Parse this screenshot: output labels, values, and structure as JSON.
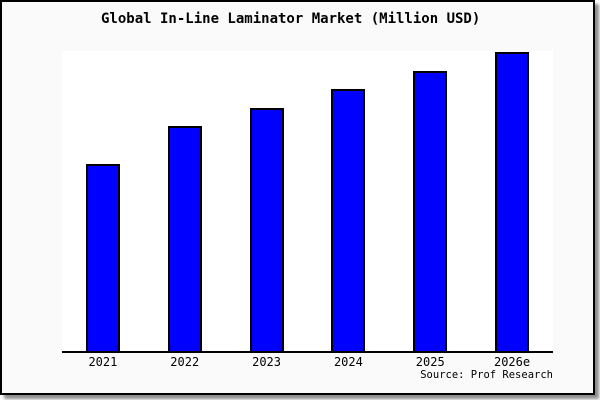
{
  "frame": {
    "background": "#fafafa",
    "border_color": "#000000",
    "shadow_color": "#8c8c8c"
  },
  "chart_data": {
    "type": "bar",
    "title": "Global In-Line Laminator Market (Million USD)",
    "categories": [
      "2021",
      "2022",
      "2023",
      "2024",
      "2025",
      "2026e"
    ],
    "values": [
      62.3,
      75.0,
      81.0,
      87.3,
      93.3,
      99.7
    ],
    "xlabel": "",
    "ylabel": "",
    "ylim": [
      0,
      100
    ],
    "y_axis_labeled": false,
    "grid": false,
    "legend": false,
    "bar_color": "#0000ff",
    "bar_edge_color": "#000000",
    "plot_background": "#ffffff",
    "axis_line_color": "#000000"
  },
  "source": {
    "label": "Source: Prof Research"
  }
}
